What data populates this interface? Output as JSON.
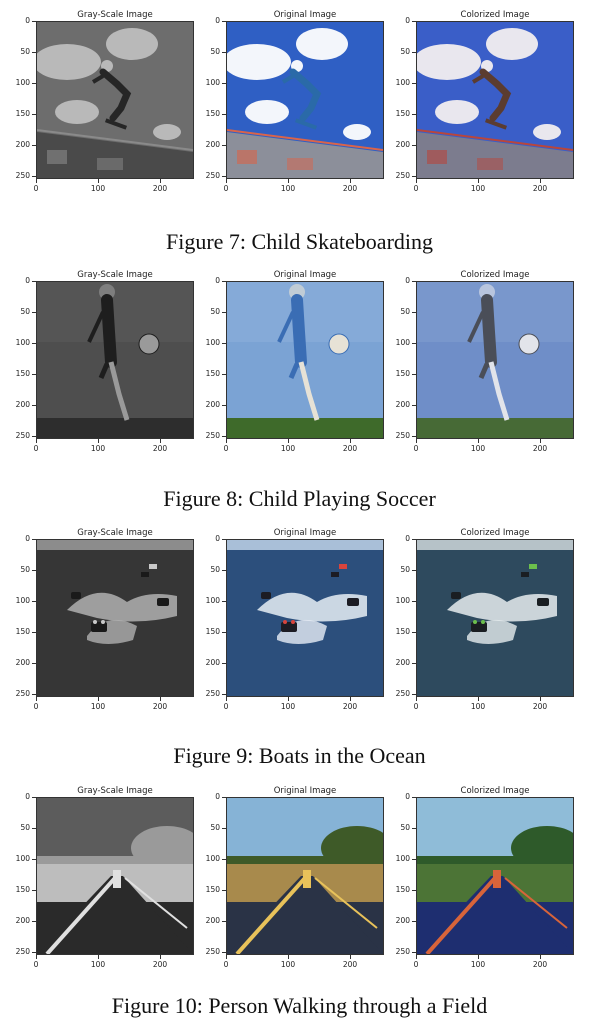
{
  "panel_titles": {
    "gray": "Gray-Scale Image",
    "original": "Original Image",
    "colorized": "Colorized Image"
  },
  "axes": {
    "y_ticks": [
      "0",
      "50",
      "100",
      "150",
      "200",
      "250"
    ],
    "x_ticks": [
      "0",
      "100",
      "200"
    ]
  },
  "figures": [
    {
      "id": "fig7",
      "caption": "Figure 7: Child Skateboarding",
      "scene": "skate",
      "palettes": {
        "gray": {
          "sky": "#6d6d6d",
          "cloud": "#b9b9b9",
          "ground": "#4a4a4a",
          "subject": "#262626",
          "accent": "#8a8a8a"
        },
        "original": {
          "sky": "#2f5fc4",
          "cloud": "#f3f6fb",
          "ground": "#8c8f9a",
          "subject": "#2a6aa8",
          "accent": "#d9644a"
        },
        "colorized": {
          "sky": "#3a5ec8",
          "cloud": "#e9e7ee",
          "ground": "#7c7c8e",
          "subject": "#5b3c30",
          "accent": "#b8463c"
        }
      }
    },
    {
      "id": "fig8",
      "caption": "Figure 8: Child Playing Soccer",
      "scene": "soccer",
      "palettes": {
        "gray": {
          "sky": "#4e4e4e",
          "cloud": "#5c5c5c",
          "ground": "#2d2d2d",
          "subject": "#1e1e1e",
          "accent": "#9a9a9a"
        },
        "original": {
          "sky": "#7ba3d4",
          "cloud": "#8fb2dc",
          "ground": "#3e6a2a",
          "subject": "#3a6db4",
          "accent": "#e7e2d6"
        },
        "colorized": {
          "sky": "#6f8ec8",
          "cloud": "#83a0d0",
          "ground": "#476a36",
          "subject": "#4a4e58",
          "accent": "#e2e4ea"
        }
      }
    },
    {
      "id": "fig9",
      "caption": "Figure 9: Boats in the Ocean",
      "scene": "boats",
      "palettes": {
        "gray": {
          "sky": "#8c8c8c",
          "cloud": "#b0b0b0",
          "ground": "#363636",
          "subject": "#1a1a1a",
          "accent": "#c9c9c9"
        },
        "original": {
          "sky": "#a9bfd8",
          "cloud": "#e8eef6",
          "ground": "#2c4f7c",
          "subject": "#1c1c24",
          "accent": "#d8443c"
        },
        "colorized": {
          "sky": "#b6c2c8",
          "cloud": "#e6ecee",
          "ground": "#2e4a5e",
          "subject": "#1a1e22",
          "accent": "#6cbf4c"
        }
      }
    },
    {
      "id": "fig10",
      "caption": "Figure 10: Person Walking through a Field",
      "scene": "field",
      "palettes": {
        "gray": {
          "sky": "#5c5c5c",
          "cloud": "#bdbdbd",
          "ground": "#2a2a2a",
          "subject": "#9a9a9a",
          "accent": "#e0e0e0"
        },
        "original": {
          "sky": "#86b3d6",
          "cloud": "#a88a4c",
          "ground": "#2a3346",
          "subject": "#3e5a28",
          "accent": "#e8c25a"
        },
        "colorized": {
          "sky": "#8fbcd8",
          "cloud": "#4c7436",
          "ground": "#1e2e70",
          "subject": "#2e5a2a",
          "accent": "#d8643a"
        }
      }
    }
  ]
}
